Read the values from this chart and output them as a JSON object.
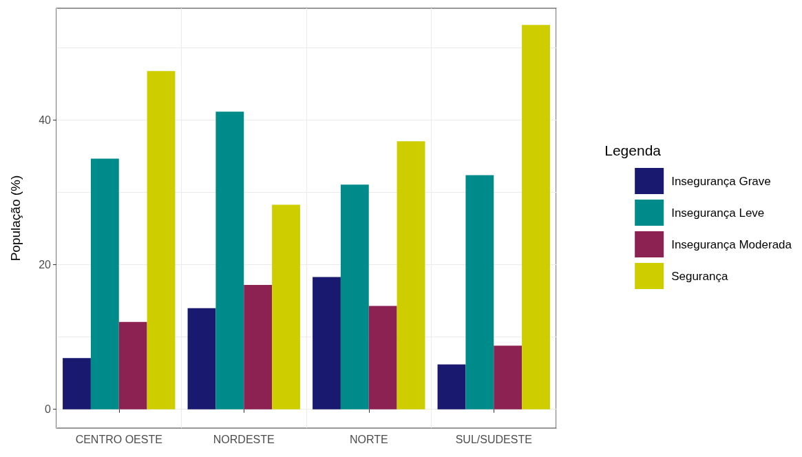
{
  "chart_data": {
    "type": "bar",
    "xlabel": null,
    "ylabel": "População (%)",
    "legend_title": "Legenda",
    "categories": [
      "CENTRO OESTE",
      "NORDESTE",
      "NORTE",
      "SUL/SUDESTE"
    ],
    "series": [
      {
        "name": "Insegurança Grave",
        "color": "#191970",
        "values": [
          7.1,
          14.0,
          18.3,
          6.2
        ]
      },
      {
        "name": "Insegurança Leve",
        "color": "#008b8b",
        "values": [
          34.7,
          41.2,
          31.1,
          32.4
        ]
      },
      {
        "name": "Insegurança Moderada",
        "color": "#8b2252",
        "values": [
          12.1,
          17.2,
          14.3,
          8.8
        ]
      },
      {
        "name": "Segurança",
        "color": "#cdcd00",
        "values": [
          46.8,
          28.3,
          37.1,
          53.2
        ]
      }
    ],
    "ylim": [
      -2.6,
      55.5
    ],
    "yticks": [
      0,
      20,
      40
    ],
    "grid": true,
    "legend": "right"
  }
}
